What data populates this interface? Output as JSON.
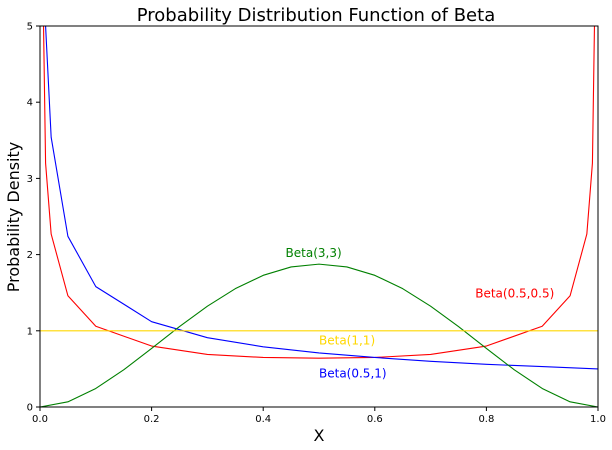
{
  "chart_data": {
    "type": "line",
    "title": "Probability Distribution Function of Beta",
    "xlabel": "X",
    "ylabel": "Probability Density",
    "xlim": [
      0.0,
      1.0
    ],
    "ylim": [
      0,
      5
    ],
    "xticks": [
      "0.0",
      "0.2",
      "0.4",
      "0.6",
      "0.8",
      "1.0"
    ],
    "xtick_values": [
      0.0,
      0.2,
      0.4,
      0.6,
      0.8,
      1.0
    ],
    "yticks": [
      "0",
      "1",
      "2",
      "3",
      "4",
      "5"
    ],
    "ytick_values": [
      0,
      1,
      2,
      3,
      4,
      5
    ],
    "grid": false,
    "legend": "none",
    "series": [
      {
        "name": "Beta(0.5,0.5)",
        "color": "#ff0000",
        "x": [
          0.002,
          0.01,
          0.02,
          0.05,
          0.1,
          0.2,
          0.3,
          0.4,
          0.5,
          0.6,
          0.7,
          0.8,
          0.9,
          0.95,
          0.98,
          0.99,
          0.998
        ],
        "y": [
          7.13,
          3.2,
          2.27,
          1.46,
          1.06,
          0.8,
          0.69,
          0.65,
          0.64,
          0.65,
          0.69,
          0.8,
          1.06,
          1.46,
          2.27,
          3.2,
          7.13
        ]
      },
      {
        "name": "Beta(0.5,1)",
        "color": "#0000ff",
        "x": [
          0.005,
          0.01,
          0.02,
          0.05,
          0.1,
          0.2,
          0.3,
          0.4,
          0.5,
          0.6,
          0.7,
          0.8,
          0.9,
          1.0
        ],
        "y": [
          7.07,
          5.0,
          3.54,
          2.24,
          1.58,
          1.12,
          0.91,
          0.79,
          0.71,
          0.65,
          0.6,
          0.56,
          0.53,
          0.5
        ]
      },
      {
        "name": "Beta(3,3)",
        "color": "#008000",
        "x": [
          0.0,
          0.05,
          0.1,
          0.15,
          0.2,
          0.25,
          0.3,
          0.35,
          0.4,
          0.45,
          0.5,
          0.55,
          0.6,
          0.65,
          0.7,
          0.75,
          0.8,
          0.85,
          0.9,
          0.95,
          1.0
        ],
        "y": [
          0.0,
          0.068,
          0.243,
          0.488,
          0.768,
          1.055,
          1.323,
          1.553,
          1.728,
          1.838,
          1.875,
          1.838,
          1.728,
          1.553,
          1.323,
          1.055,
          0.768,
          0.488,
          0.243,
          0.068,
          0.0
        ]
      },
      {
        "name": "Beta(1,1)",
        "color": "#ffd700",
        "x": [
          0.0,
          1.0
        ],
        "y": [
          1.0,
          1.0
        ]
      }
    ],
    "annotations": [
      {
        "text": "Beta(3,3)",
        "x": 0.44,
        "y": 1.97,
        "color": "#008000"
      },
      {
        "text": "Beta(0.5,0.5)",
        "x": 0.78,
        "y": 1.44,
        "color": "#ff0000"
      },
      {
        "text": "Beta(1,1)",
        "x": 0.5,
        "y": 0.82,
        "color": "#ffd700"
      },
      {
        "text": "Beta(0.5,1)",
        "x": 0.5,
        "y": 0.39,
        "color": "#0000ff"
      }
    ]
  }
}
